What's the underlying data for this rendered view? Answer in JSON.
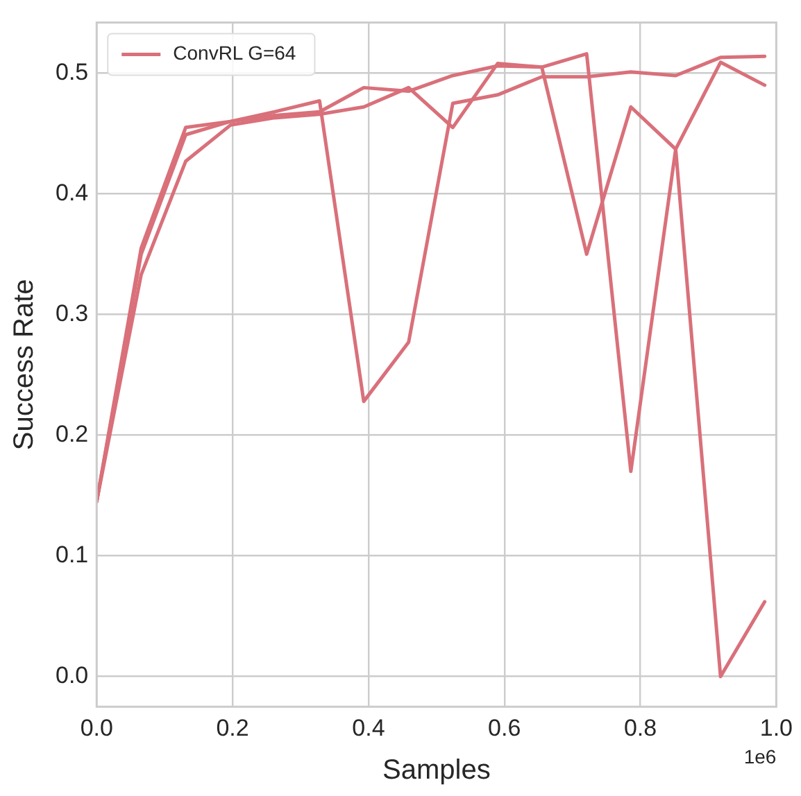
{
  "chart_data": {
    "type": "line",
    "xlabel": "Samples",
    "ylabel": "Success Rate",
    "x": [
      0,
      0.0655,
      0.131,
      0.197,
      0.262,
      0.328,
      0.393,
      0.459,
      0.524,
      0.59,
      0.655,
      0.721,
      0.786,
      0.852,
      0.918,
      0.983
    ],
    "series": [
      {
        "name": "ConvRL G=64",
        "color": "#d9707a",
        "values": [
          0.145,
          0.355,
          0.455,
          0.46,
          0.468,
          0.477,
          0.228,
          0.277,
          0.475,
          0.482,
          0.497,
          0.497,
          0.501,
          0.498,
          0.513,
          0.514
        ]
      },
      {
        "color": "#d9707a",
        "values": [
          0.145,
          0.35,
          0.449,
          0.46,
          0.465,
          0.468,
          0.488,
          0.485,
          0.498,
          0.506,
          0.505,
          0.35,
          0.472,
          0.437,
          0.509,
          0.49
        ]
      },
      {
        "color": "#d9707a",
        "values": [
          0.145,
          0.333,
          0.427,
          0.457,
          0.463,
          0.466,
          0.472,
          0.488,
          0.455,
          0.508,
          0.505,
          0.516,
          0.17,
          0.437,
          0.0,
          0.062
        ]
      }
    ],
    "xlim": [
      0,
      1
    ],
    "ylim": [
      -0.025,
      0.542
    ],
    "xticks": [
      {
        "value": 0,
        "label": "0.0"
      },
      0.2,
      0.4,
      0.6,
      0.8,
      {
        "value": 1,
        "label": "1.0"
      }
    ],
    "yticks": [
      {
        "value": 0,
        "label": "0.0"
      },
      {
        "value": 0.1,
        "label": "0.1"
      },
      {
        "value": 0.2,
        "label": "0.2"
      },
      {
        "value": 0.3,
        "label": "0.3"
      },
      {
        "value": 0.4,
        "label": "0.4"
      },
      {
        "value": 0.5,
        "label": "0.5"
      }
    ],
    "annotations": [
      "1e6"
    ],
    "grid": true,
    "legend": "top left",
    "marker": "none",
    "line_style": "solid"
  }
}
